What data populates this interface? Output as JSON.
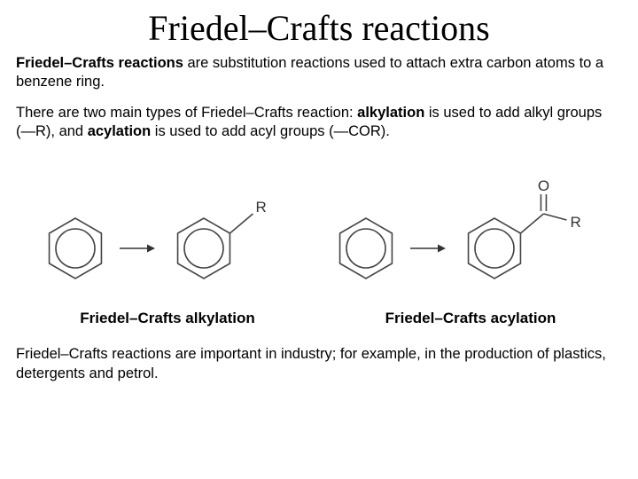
{
  "title": "Friedel–Crafts reactions",
  "p1_bold": "Friedel–Crafts reactions",
  "p1_rest": " are substitution reactions used to attach extra carbon atoms to a benzene ring.",
  "p2_a": "There are two main types of Friedel–Crafts reaction: ",
  "p2_b": "alkylation",
  "p2_c": " is used to add alkyl groups (—R), and ",
  "p2_d": "acylation",
  "p2_e": " is used to add acyl groups (—COR).",
  "caption_left": "Friedel–Crafts alkylation",
  "caption_right": "Friedel–Crafts acylation",
  "p3": "Friedel–Crafts reactions are important in industry; for example, in the production of plastics, detergents and petrol.",
  "diagram": {
    "ring_stroke": "#444444",
    "ring_stroke_width": 1.6,
    "label_color": "#333333",
    "label_fontsize": 17,
    "arrow_color": "#333333",
    "hex_radius": 34,
    "inner_radius": 22
  }
}
